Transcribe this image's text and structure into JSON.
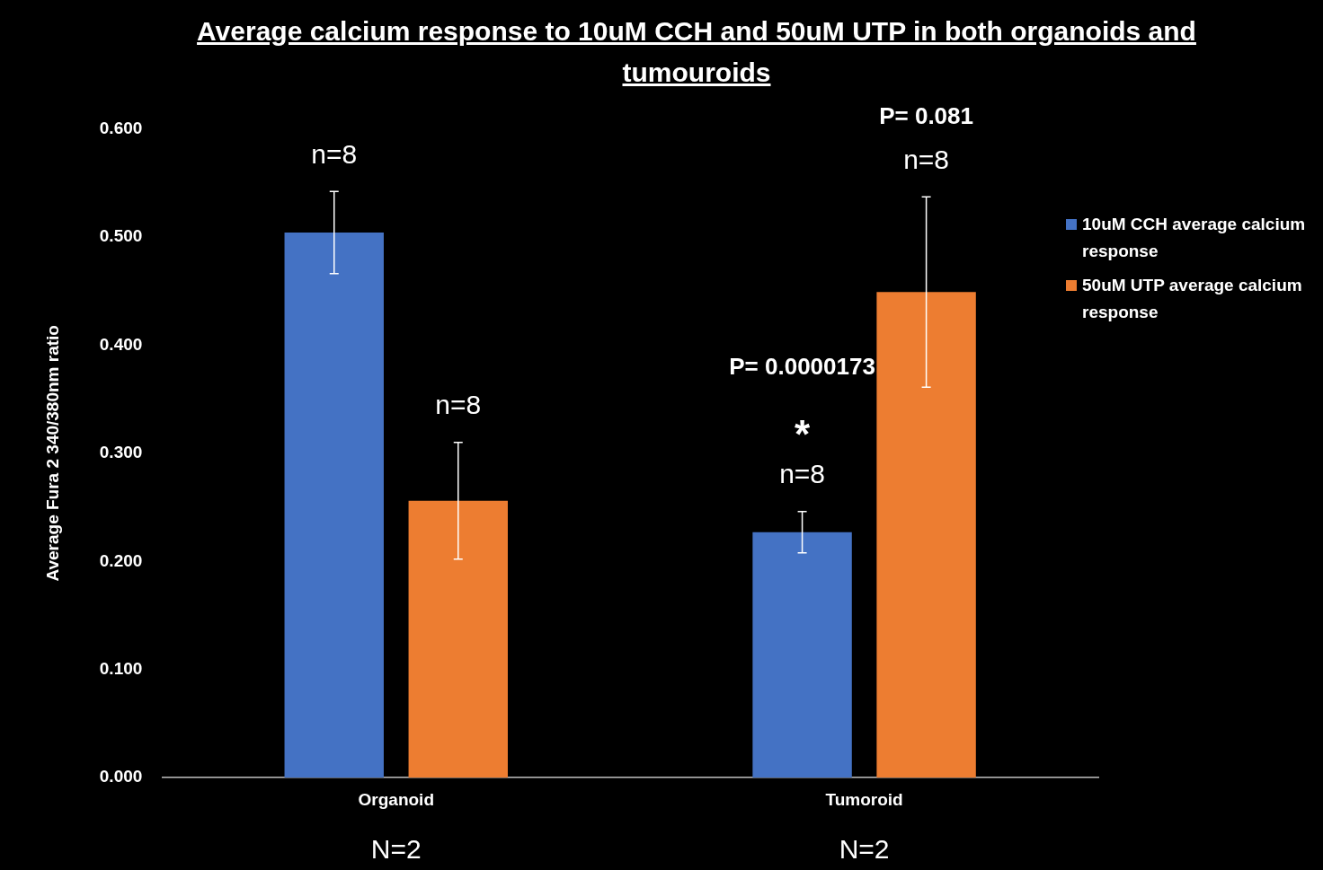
{
  "chart_data": {
    "type": "bar",
    "title": "Average calcium response to 10uM CCH and 50uM UTP in both organoids and tumouroids",
    "ylabel": "Average Fura 2 340/380nm ratio",
    "categories": [
      "Organoid",
      "Tumoroid"
    ],
    "series": [
      {
        "name": "10uM CCH average calcium response",
        "color": "#4472c4",
        "values": [
          0.504,
          0.227
        ],
        "errors": [
          0.038,
          0.019
        ]
      },
      {
        "name": "50uM UTP average calcium response",
        "color": "#ed7d31",
        "values": [
          0.256,
          0.449
        ],
        "errors": [
          0.054,
          0.088
        ]
      }
    ],
    "ylim": [
      0,
      0.6
    ],
    "yticks": [
      {
        "value": 0,
        "label": "0.000"
      },
      {
        "value": 0.1,
        "label": "0.100"
      },
      {
        "value": 0.2,
        "label": "0.200"
      },
      {
        "value": 0.3,
        "label": "0.300"
      },
      {
        "value": 0.4,
        "label": "0.400"
      },
      {
        "value": 0.5,
        "label": "0.500"
      },
      {
        "value": 0.6,
        "label": "0.600"
      }
    ],
    "grid": false,
    "legend": "top right",
    "annotations": [
      "n=8",
      "n=8",
      "n=8",
      "n=8",
      "P= 0.081",
      "P= 0.0000173",
      "*",
      "N=2",
      "N=2"
    ]
  }
}
